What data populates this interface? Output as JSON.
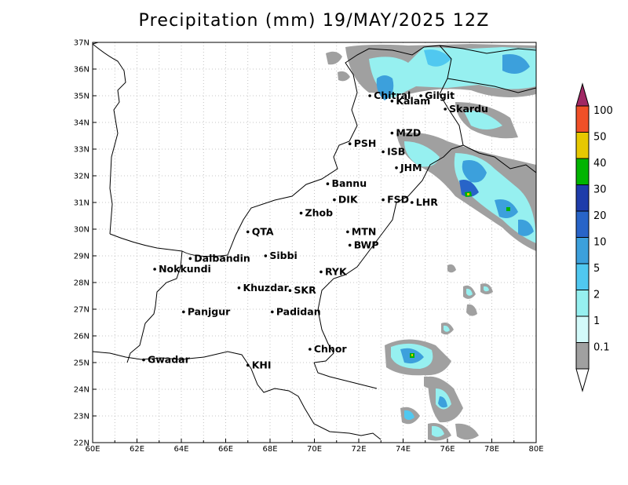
{
  "title": "Precipitation (mm) 19/MAY/2025 12Z",
  "map": {
    "lon_range": [
      60,
      80
    ],
    "lat_range": [
      22,
      37
    ],
    "lon_ticks": [
      "60E",
      "62E",
      "64E",
      "66E",
      "68E",
      "70E",
      "72E",
      "74E",
      "76E",
      "78E",
      "80E"
    ],
    "lat_ticks": [
      "22N",
      "23N",
      "24N",
      "25N",
      "26N",
      "27N",
      "28N",
      "29N",
      "30N",
      "31N",
      "32N",
      "33N",
      "34N",
      "35N",
      "36N",
      "37N"
    ],
    "grid": "dotted"
  },
  "cities": [
    {
      "name": "Chitral",
      "lon": 72.5,
      "lat": 35.0
    },
    {
      "name": "Gilgit",
      "lon": 74.8,
      "lat": 35.0
    },
    {
      "name": "Kalam",
      "lon": 73.5,
      "lat": 34.8
    },
    {
      "name": "Skardu",
      "lon": 75.9,
      "lat": 34.5
    },
    {
      "name": "MZD",
      "lon": 73.5,
      "lat": 33.6
    },
    {
      "name": "PSH",
      "lon": 71.6,
      "lat": 33.2
    },
    {
      "name": "ISB",
      "lon": 73.1,
      "lat": 32.9
    },
    {
      "name": "JHM",
      "lon": 73.7,
      "lat": 32.3
    },
    {
      "name": "Bannu",
      "lon": 70.6,
      "lat": 31.7
    },
    {
      "name": "DIK",
      "lon": 70.9,
      "lat": 31.1
    },
    {
      "name": "FSD",
      "lon": 73.1,
      "lat": 31.1
    },
    {
      "name": "LHR",
      "lon": 74.4,
      "lat": 31.0
    },
    {
      "name": "Zhob",
      "lon": 69.4,
      "lat": 30.6
    },
    {
      "name": "QTA",
      "lon": 67.0,
      "lat": 29.9
    },
    {
      "name": "MTN",
      "lon": 71.5,
      "lat": 29.9
    },
    {
      "name": "Sibbi",
      "lon": 67.8,
      "lat": 29.0
    },
    {
      "name": "BWP",
      "lon": 71.6,
      "lat": 29.4
    },
    {
      "name": "Dalbandin",
      "lon": 64.4,
      "lat": 28.9
    },
    {
      "name": "Nokkundi",
      "lon": 62.8,
      "lat": 28.5
    },
    {
      "name": "RYK",
      "lon": 70.3,
      "lat": 28.4
    },
    {
      "name": "Khuzdar",
      "lon": 66.6,
      "lat": 27.8
    },
    {
      "name": "SKR",
      "lon": 68.9,
      "lat": 27.7
    },
    {
      "name": "Padidan",
      "lon": 68.1,
      "lat": 26.9
    },
    {
      "name": "Panjgur",
      "lon": 64.1,
      "lat": 26.9
    },
    {
      "name": "Chhor",
      "lon": 69.8,
      "lat": 25.5
    },
    {
      "name": "KHI",
      "lon": 67.0,
      "lat": 24.9
    },
    {
      "name": "Gwadar",
      "lon": 62.3,
      "lat": 25.1
    }
  ],
  "colorbar": {
    "labels": [
      "0.1",
      "1",
      "2",
      "5",
      "10",
      "20",
      "30",
      "40",
      "50",
      "100"
    ],
    "colors": [
      "#a0a0a0",
      "#d2fafa",
      "#96f0f0",
      "#50c8f0",
      "#3ca0dc",
      "#2864c8",
      "#1e3caa",
      "#00b400",
      "#e6c800",
      "#f05028",
      "#a02864"
    ]
  }
}
